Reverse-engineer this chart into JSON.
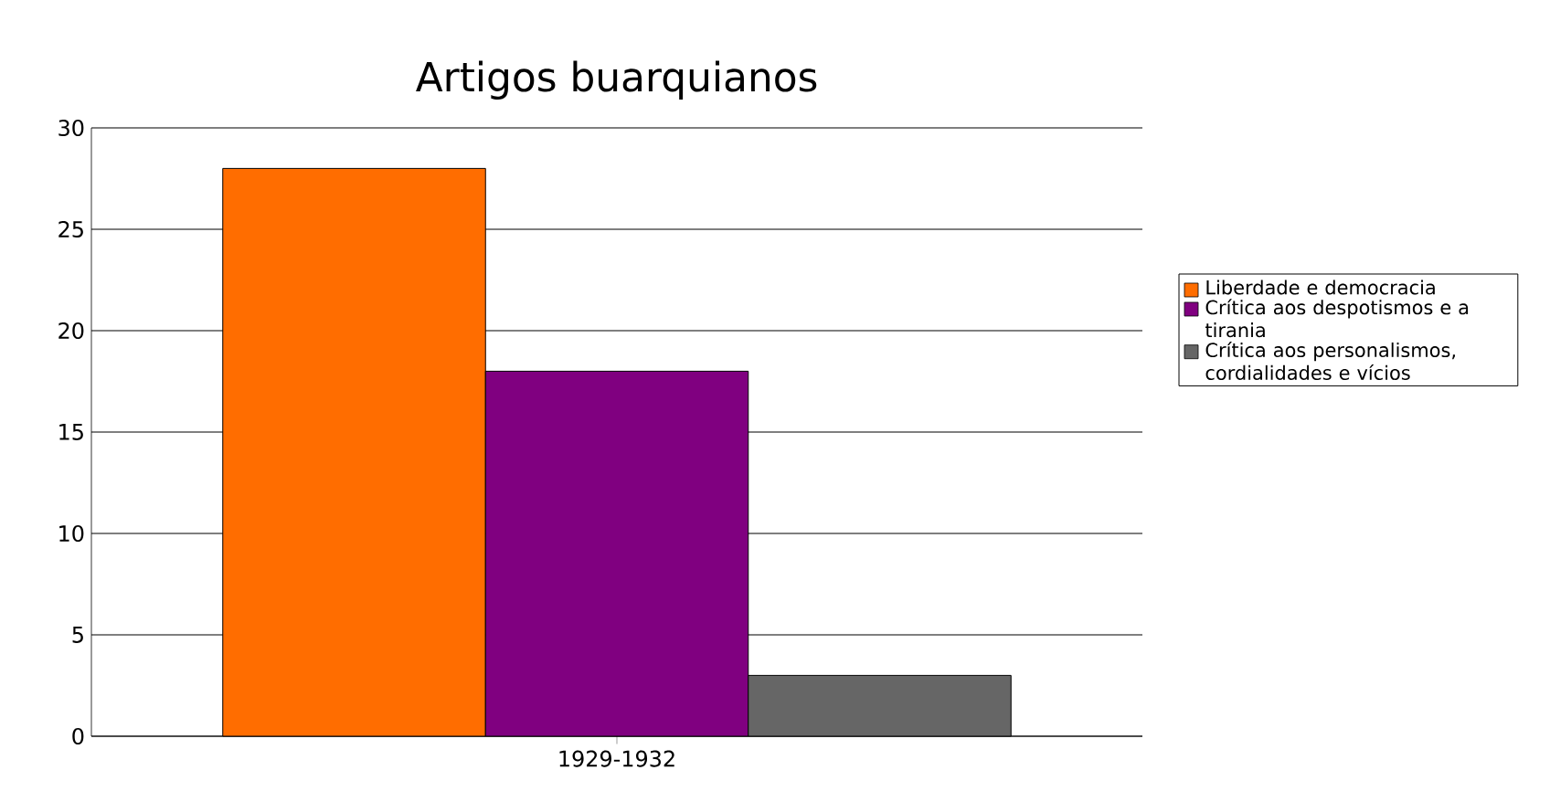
{
  "chart_data": {
    "type": "bar",
    "title": "Artigos buarquianos",
    "categories": [
      "1929-1932"
    ],
    "series": [
      {
        "name": "Liberdade e democracia",
        "color": "#ff6d00",
        "values": [
          28
        ]
      },
      {
        "name": "Crítica aos despotismos e a tirania",
        "color": "#800080",
        "values": [
          18
        ]
      },
      {
        "name": "Crítica aos personalismos, cordialidades e vícios",
        "color": "#666666",
        "values": [
          3
        ]
      }
    ],
    "ylim": [
      0,
      30
    ],
    "yticks": [
      0,
      5,
      10,
      15,
      20,
      25,
      30
    ],
    "grid": "y",
    "legend": "right"
  }
}
